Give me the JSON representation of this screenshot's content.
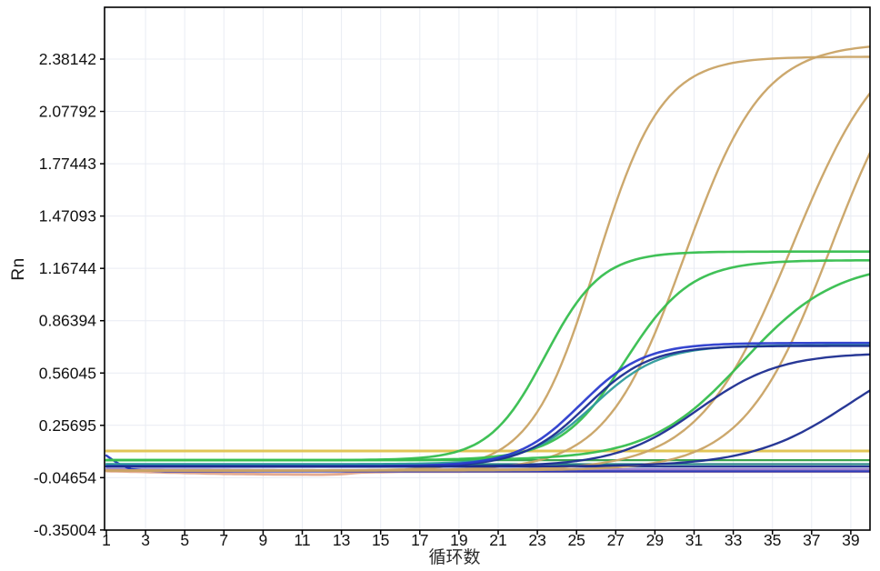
{
  "chart_data": {
    "type": "line",
    "title": "",
    "xlabel": "循环数",
    "ylabel": "Rn",
    "xlim": [
      1,
      40
    ],
    "ylim": [
      -0.35004,
      2.68
    ],
    "grid": true,
    "legend": "none",
    "x_tick_labels": [
      "1",
      "3",
      "5",
      "7",
      "9",
      "11",
      "13",
      "15",
      "17",
      "19",
      "21",
      "23",
      "25",
      "27",
      "29",
      "31",
      "33",
      "35",
      "37",
      "39"
    ],
    "y_tick_labels": [
      "2.38142",
      "2.07792",
      "1.77443",
      "1.47093",
      "1.16744",
      "0.86394",
      "0.56045",
      "0.25695",
      "-0.04654",
      "-0.35004"
    ],
    "threshold": {
      "name": "threshold-line",
      "value": 0.108,
      "color": "#E0C24E"
    },
    "series": [
      {
        "name": "ntc-salmon-baseline",
        "color": "#E3A68C",
        "width": 3,
        "type": "points",
        "points": [
          [
            1,
            -0.008
          ],
          [
            4,
            -0.016
          ],
          [
            7,
            -0.024
          ],
          [
            10,
            -0.028
          ],
          [
            12,
            -0.029
          ],
          [
            13,
            -0.026
          ],
          [
            14,
            -0.016
          ],
          [
            16,
            -0.012
          ],
          [
            20,
            -0.011
          ],
          [
            40,
            -0.011
          ]
        ]
      },
      {
        "name": "ntc-purple-baseline",
        "color": "#9B7BC9",
        "width": 2.4,
        "type": "points",
        "points": [
          [
            1,
            0.002
          ],
          [
            6,
            0.0
          ],
          [
            12,
            -0.003
          ],
          [
            20,
            0.001
          ],
          [
            30,
            0.002
          ],
          [
            40,
            0.002
          ]
        ]
      },
      {
        "name": "ntc-blue-dip",
        "color": "#2435BD",
        "width": 2.4,
        "type": "points",
        "points": [
          [
            1,
            0.082
          ],
          [
            1.6,
            0.035
          ],
          [
            2.2,
            0.004
          ],
          [
            3,
            -0.006
          ],
          [
            4,
            -0.01
          ],
          [
            40,
            -0.01
          ]
        ]
      },
      {
        "name": "navy-flat-baseline",
        "color": "#1B2D8F",
        "width": 2.2,
        "type": "points",
        "points": [
          [
            1,
            0.018
          ],
          [
            40,
            0.018
          ]
        ]
      },
      {
        "name": "teal-flat-baseline",
        "color": "#1F8080",
        "width": 2.2,
        "type": "points",
        "points": [
          [
            1,
            0.032
          ],
          [
            40,
            0.032
          ]
        ]
      },
      {
        "name": "green-flat-baseline",
        "color": "#2F9E44",
        "width": 2.2,
        "type": "points",
        "points": [
          [
            1,
            0.055
          ],
          [
            40,
            0.055
          ]
        ]
      },
      {
        "name": "orange-curve-1",
        "color": "#C9A365",
        "width": 2.4,
        "type": "sigmoid",
        "baseline": -0.005,
        "amplitude": 2.4,
        "midpoint_cycle": 26.0,
        "slope": 0.6,
        "ct": 20.9,
        "end_value": 2.39
      },
      {
        "name": "orange-curve-2",
        "color": "#C9A365",
        "width": 2.4,
        "type": "sigmoid",
        "baseline": -0.005,
        "amplitude": 2.48,
        "midpoint_cycle": 30.5,
        "slope": 0.5,
        "ct": 24.5,
        "end_value": 2.44
      },
      {
        "name": "orange-curve-3",
        "color": "#C9A365",
        "width": 2.4,
        "type": "sigmoid",
        "baseline": -0.005,
        "amplitude": 2.6,
        "midpoint_cycle": 36.0,
        "slope": 0.42,
        "ct": 28.5,
        "end_value": 2.19
      },
      {
        "name": "orange-curve-4",
        "color": "#C9A365",
        "width": 2.4,
        "type": "sigmoid",
        "baseline": -0.005,
        "amplitude": 2.6,
        "midpoint_cycle": 38.0,
        "slope": 0.45,
        "ct": 31.0,
        "end_value": 1.85
      },
      {
        "name": "green-curve-1",
        "color": "#36BE4E",
        "width": 2.6,
        "type": "sigmoid",
        "baseline": 0.055,
        "amplitude": 1.21,
        "midpoint_cycle": 23.4,
        "slope": 0.7,
        "ct": 19.5,
        "end_value": 1.26
      },
      {
        "name": "green-curve-2",
        "color": "#36BE4E",
        "width": 2.6,
        "type": "sigmoid",
        "baseline": 0.055,
        "amplitude": 1.16,
        "midpoint_cycle": 27.5,
        "slope": 0.6,
        "ct": 22.8,
        "end_value": 1.21
      },
      {
        "name": "green-curve-3",
        "color": "#36BE4E",
        "width": 2.6,
        "type": "sigmoid",
        "baseline": 0.055,
        "amplitude": 1.15,
        "midpoint_cycle": 33.5,
        "slope": 0.42,
        "ct": 26.8,
        "end_value": 1.14
      },
      {
        "name": "teal-curve-1",
        "color": "#2E9B9B",
        "width": 2.4,
        "type": "sigmoid",
        "baseline": 0.032,
        "amplitude": 0.69,
        "midpoint_cycle": 25.9,
        "slope": 0.6,
        "ct": 23.0,
        "end_value": 0.72
      },
      {
        "name": "navy-curve-1",
        "color": "#1C2D90",
        "width": 2.4,
        "type": "sigmoid",
        "baseline": 0.018,
        "amplitude": 0.7,
        "midpoint_cycle": 25.5,
        "slope": 0.62,
        "ct": 22.4,
        "end_value": 0.72
      },
      {
        "name": "royal-blue-curve-1",
        "color": "#2B3CCE",
        "width": 2.6,
        "type": "sigmoid",
        "baseline": 0.02,
        "amplitude": 0.715,
        "midpoint_cycle": 25.2,
        "slope": 0.62,
        "ct": 22.1,
        "end_value": 0.735
      },
      {
        "name": "navy-curve-2",
        "color": "#1C2D90",
        "width": 2.4,
        "type": "sigmoid",
        "baseline": 0.018,
        "amplitude": 0.66,
        "midpoint_cycle": 31.2,
        "slope": 0.48,
        "ct": 27.6,
        "end_value": 0.67
      },
      {
        "name": "navy-curve-3",
        "color": "#1C2D90",
        "width": 2.4,
        "type": "sigmoid",
        "baseline": 0.018,
        "amplitude": 0.74,
        "midpoint_cycle": 39.0,
        "slope": 0.4,
        "ct": 33.8,
        "end_value": 0.46
      }
    ]
  }
}
